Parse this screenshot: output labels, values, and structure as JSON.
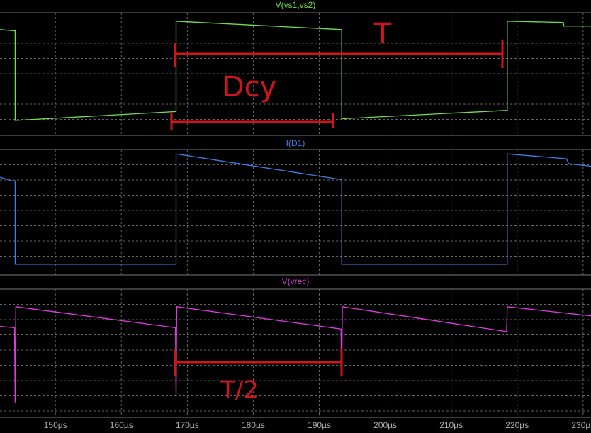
{
  "chart_data": [
    {
      "type": "line",
      "xlim": [
        141.6,
        231.2
      ],
      "ylim": [
        0,
        10
      ],
      "x": [
        141.6,
        143.9,
        143.9,
        168.3,
        168.3,
        193.4,
        193.4,
        218.5,
        218.5,
        227,
        227.1,
        231.2
      ],
      "series": [
        {
          "name": "V(vs1,vs2)",
          "color": "#6fe04a",
          "values": [
            8.6,
            8.5,
            1.06,
            1.8,
            9.3,
            8.6,
            1.2,
            1.9,
            9.3,
            9.2,
            8.9,
            8.9
          ]
        }
      ],
      "annotations": [
        "T",
        "Dcy"
      ]
    },
    {
      "type": "line",
      "xlim": [
        141.6,
        231.2
      ],
      "ylim": [
        0,
        10
      ],
      "x": [
        141.6,
        143.4,
        143.9,
        143.9,
        168.3,
        168.3,
        193.4,
        193.4,
        218.5,
        218.5,
        227.5,
        227.8,
        231.2
      ],
      "series": [
        {
          "name": "I(D1)",
          "color": "#3d7fe6",
          "values": [
            7.8,
            7.5,
            7.5,
            0.7,
            0.7,
            9.7,
            7.6,
            0.7,
            0.7,
            9.7,
            9.3,
            8.9,
            8.7
          ]
        }
      ]
    },
    {
      "type": "line",
      "xlim": [
        141.6,
        231.2
      ],
      "ylim": [
        0,
        10
      ],
      "x": [
        141.6,
        143.8,
        143.9,
        144.0,
        168.2,
        168.3,
        168.4,
        193.3,
        193.4,
        193.5,
        218.4,
        218.5,
        231.2
      ],
      "series": [
        {
          "name": "V(vrec)",
          "color": "#e03be0",
          "values": [
            7.0,
            6.9,
            1.2,
            8.5,
            6.9,
            1.6,
            8.5,
            6.8,
            3.2,
            8.5,
            6.6,
            8.5,
            7.8
          ]
        }
      ],
      "xticks": [
        {
          "value": 150,
          "label": "150µs"
        },
        {
          "value": 160,
          "label": "160µs"
        },
        {
          "value": 170,
          "label": "170µs"
        },
        {
          "value": 180,
          "label": "180µs"
        },
        {
          "value": 190,
          "label": "190µs"
        },
        {
          "value": 200,
          "label": "200µs"
        },
        {
          "value": 210,
          "label": "210µs"
        },
        {
          "value": 220,
          "label": "220µs"
        },
        {
          "value": 230,
          "label": "230µs"
        }
      ],
      "annotations": [
        "T/2"
      ]
    }
  ]
}
